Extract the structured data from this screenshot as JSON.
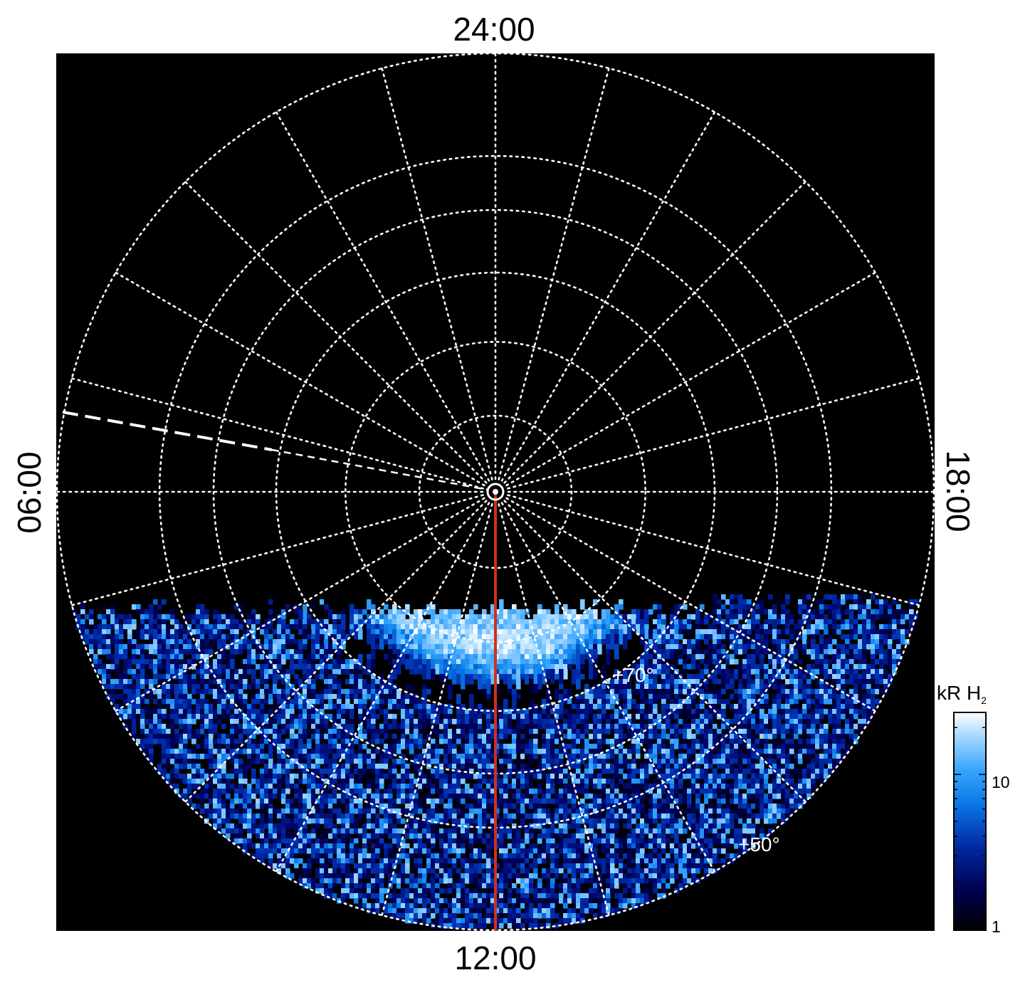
{
  "chart_data": {
    "type": "heatmap",
    "projection": "polar (orthographic, north pole centred)",
    "local_time_labels": {
      "top": "24:00",
      "bottom": "12:00",
      "left": "06:00",
      "right": "18:00"
    },
    "latitude_labels": [
      {
        "text": "+70°",
        "latitude": 70
      },
      {
        "text": "+50°",
        "latitude": 50
      }
    ],
    "latitude_grid_deg": [
      80,
      70,
      60,
      50,
      40
    ],
    "longitude_grid_step_deg": 15,
    "observed_coverage": "dayside only (roughly 07:30 to 16:30 LT, equatorward of about 60–65° on the flanks)",
    "highlighted_meridian_lt": "12:00",
    "highlighted_meridian_color": "#d0301a",
    "dashed_meridian_lt": "05:15",
    "colorbar": {
      "title": "kR H",
      "title_subscript": "2",
      "scale": "log",
      "range": [
        1,
        25
      ],
      "tick_labels": [
        "1",
        "10"
      ],
      "tick_values": [
        1,
        10
      ],
      "colors": [
        "#000000",
        "#000060",
        "#002fb0",
        "#0a7de8",
        "#3fa8ff",
        "#9cd4ff",
        "#ffffff"
      ]
    },
    "features": [
      {
        "name": "bright arc",
        "latitude_range": [
          66,
          74
        ],
        "lt_range": [
          "09:00",
          "15:00"
        ],
        "intensity_kR": [
          8,
          20
        ]
      },
      {
        "name": "dim band",
        "latitude_range": [
          60,
          64
        ],
        "lt_range": [
          "10:00",
          "14:00"
        ],
        "intensity_kR": [
          1,
          3
        ]
      },
      {
        "name": "diffuse emission",
        "latitude_range": [
          40,
          58
        ],
        "lt_range": [
          "08:00",
          "16:00"
        ],
        "intensity_kR": [
          1,
          15
        ]
      }
    ]
  }
}
